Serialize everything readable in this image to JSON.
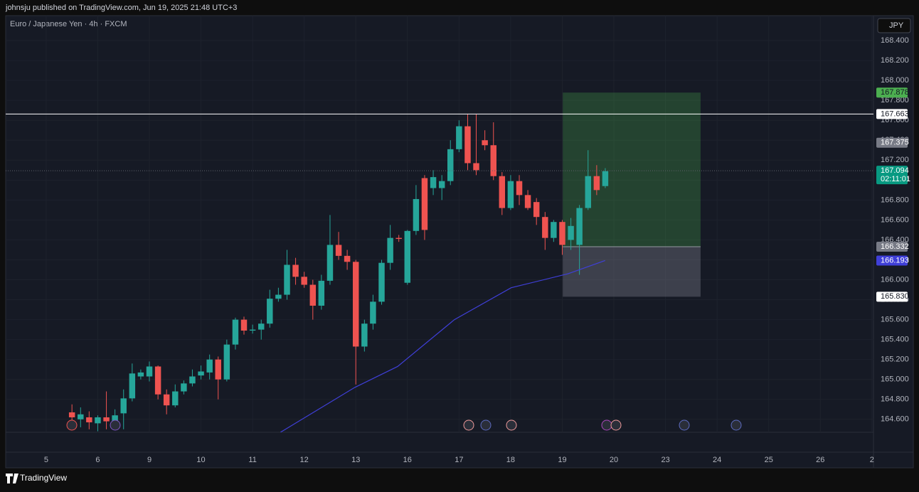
{
  "header": "johnsju published on TradingView.com, Jun 19, 2025 21:48 UTC+3",
  "brand": "TradingView",
  "chart_data": {
    "type": "candlestick",
    "title": "Euro / Japanese Yen · 4h · FXCM",
    "currency": "JPY",
    "up_color": "#26a69a",
    "down_color": "#ef5350",
    "xlim": [
      -0.784,
      16.03
    ],
    "xticks": [
      {
        "value": 0,
        "label": "5"
      },
      {
        "value": 1,
        "label": "6"
      },
      {
        "value": 2,
        "label": "9"
      },
      {
        "value": 3,
        "label": "10"
      },
      {
        "value": 4,
        "label": "11"
      },
      {
        "value": 5,
        "label": "12"
      },
      {
        "value": 6,
        "label": "13"
      },
      {
        "value": 7,
        "label": "16"
      },
      {
        "value": 8,
        "label": "17"
      },
      {
        "value": 9,
        "label": "18"
      },
      {
        "value": 10,
        "label": "19"
      },
      {
        "value": 11,
        "label": "20"
      },
      {
        "value": 12,
        "label": "23"
      },
      {
        "value": 13,
        "label": "24"
      },
      {
        "value": 14,
        "label": "25"
      },
      {
        "value": 15,
        "label": "26"
      },
      {
        "value": 16,
        "label": "2"
      }
    ],
    "ylim": [
      164.47,
      168.65
    ],
    "yticks": [
      {
        "value": 164.6,
        "label": "164.600"
      },
      {
        "value": 164.8,
        "label": "164.800"
      },
      {
        "value": 165.0,
        "label": "165.000"
      },
      {
        "value": 165.2,
        "label": "165.200"
      },
      {
        "value": 165.4,
        "label": "165.400"
      },
      {
        "value": 165.6,
        "label": "165.600"
      },
      {
        "value": 165.8,
        "label": "165.800"
      },
      {
        "value": 166.0,
        "label": "166.000"
      },
      {
        "value": 166.2,
        "label": "166.200"
      },
      {
        "value": 166.4,
        "label": "166.400"
      },
      {
        "value": 166.6,
        "label": "166.600"
      },
      {
        "value": 166.8,
        "label": "166.800"
      },
      {
        "value": 167.0,
        "label": "167.000"
      },
      {
        "value": 167.2,
        "label": "167.200"
      },
      {
        "value": 167.4,
        "label": "167.400"
      },
      {
        "value": 167.6,
        "label": "167.600"
      },
      {
        "value": 167.8,
        "label": "167.800"
      },
      {
        "value": 168.0,
        "label": "168.000"
      },
      {
        "value": 168.2,
        "label": "168.200"
      },
      {
        "value": 168.4,
        "label": "168.400"
      }
    ],
    "candles": {
      "x": [
        0.5,
        0.667,
        0.833,
        1,
        1.167,
        1.333,
        1.5,
        1.667,
        1.833,
        2,
        2.167,
        2.333,
        2.5,
        2.667,
        2.833,
        3,
        3.167,
        3.333,
        3.5,
        3.667,
        3.833,
        4,
        4.167,
        4.333,
        4.5,
        4.667,
        4.833,
        5,
        5.167,
        5.333,
        5.5,
        5.667,
        5.833,
        6,
        6.167,
        6.333,
        6.5,
        6.667,
        6.833,
        7,
        7.167,
        7.333,
        7.5,
        7.667,
        7.833,
        8,
        8.167,
        8.333,
        8.5,
        8.667,
        8.833,
        9,
        9.167,
        9.333,
        9.5,
        9.667,
        9.833,
        10,
        10.167,
        10.333,
        10.5,
        10.667,
        10.833
      ],
      "open": [
        164.67,
        164.6,
        164.62,
        164.56,
        164.62,
        164.58,
        164.66,
        164.81,
        165.03,
        165.03,
        165.13,
        164.85,
        164.74,
        164.88,
        164.96,
        165.04,
        165.07,
        165.2,
        165.0,
        165.35,
        165.6,
        165.49,
        165.5,
        165.56,
        165.81,
        165.85,
        166.15,
        166.03,
        165.95,
        165.74,
        165.99,
        166.35,
        166.24,
        166.18,
        165.33,
        165.56,
        165.78,
        166.17,
        166.42,
        165.97,
        166.49,
        167.02,
        166.92,
        166.92,
        166.99,
        167.31,
        167.54,
        167.17,
        167.4,
        167.35,
        167.04,
        166.72,
        166.99,
        166.85,
        166.78,
        166.63,
        166.42,
        166.58,
        166.4,
        166.35,
        166.72,
        167.04,
        166.94
      ],
      "high": [
        164.75,
        164.72,
        164.68,
        164.64,
        164.88,
        164.7,
        164.9,
        165.16,
        165.1,
        165.18,
        165.14,
        164.9,
        164.95,
        164.99,
        165.1,
        165.14,
        165.25,
        165.23,
        165.4,
        165.62,
        165.63,
        165.55,
        165.6,
        165.9,
        165.92,
        166.3,
        166.22,
        166.08,
        166.0,
        166.05,
        166.65,
        166.48,
        166.3,
        166.2,
        165.6,
        165.85,
        166.2,
        166.55,
        166.45,
        166.5,
        166.95,
        167.05,
        167.1,
        167.05,
        167.4,
        167.6,
        167.66,
        167.66,
        167.5,
        167.58,
        167.08,
        167.05,
        167.05,
        166.9,
        166.82,
        166.68,
        166.6,
        166.6,
        166.62,
        166.75,
        167.3,
        167.15,
        167.12
      ],
      "low": [
        164.55,
        164.52,
        164.5,
        164.48,
        164.5,
        164.5,
        164.5,
        164.78,
        165.0,
        164.98,
        164.8,
        164.65,
        164.72,
        164.85,
        164.93,
        165.0,
        165.0,
        164.8,
        164.98,
        165.3,
        165.45,
        165.46,
        165.4,
        165.52,
        165.78,
        165.8,
        165.95,
        165.92,
        165.6,
        165.7,
        165.95,
        166.2,
        166.1,
        164.95,
        165.28,
        165.5,
        165.75,
        166.1,
        166.38,
        165.95,
        166.45,
        166.4,
        166.85,
        166.8,
        166.95,
        167.28,
        167.1,
        167.05,
        167.3,
        167.0,
        166.65,
        166.7,
        166.75,
        166.7,
        166.55,
        166.3,
        166.38,
        166.25,
        166.3,
        166.05,
        166.7,
        166.85,
        166.92
      ],
      "close": [
        164.62,
        164.65,
        164.57,
        164.62,
        164.58,
        164.64,
        164.81,
        165.06,
        165.07,
        165.13,
        164.85,
        164.74,
        164.88,
        164.96,
        165.03,
        165.08,
        165.2,
        165.0,
        165.35,
        165.6,
        165.49,
        165.5,
        165.56,
        165.81,
        165.85,
        166.15,
        166.03,
        165.95,
        165.74,
        165.99,
        166.35,
        166.24,
        166.18,
        165.33,
        165.56,
        165.78,
        166.17,
        166.42,
        166.41,
        166.49,
        166.81,
        166.5,
        167.03,
        166.99,
        167.31,
        167.54,
        167.17,
        167.1,
        167.35,
        167.04,
        166.72,
        166.99,
        166.85,
        166.72,
        166.63,
        166.42,
        166.58,
        166.35,
        166.54,
        166.72,
        167.04,
        166.9,
        167.09
      ]
    },
    "ma": {
      "color": "#3f3fd8",
      "x": [
        4.54,
        5.98,
        6.81,
        7.91,
        9.01,
        10.11,
        10.83
      ],
      "values": [
        164.47,
        164.92,
        165.13,
        165.6,
        165.92,
        166.06,
        166.193
      ]
    },
    "position": {
      "x": [
        10.01,
        12.68
      ],
      "target": 167.878,
      "entry": 166.332,
      "stop": {
        "value": 165.83,
        "label": "165.830"
      }
    },
    "price_labels": [
      {
        "value": 167.663,
        "bg": "#ffffff",
        "fg": "#131722",
        "line": "solid"
      },
      {
        "value": 167.375,
        "bg": "#787b86",
        "fg": "#ffffff"
      },
      {
        "value": 167.094,
        "bg": "#089981",
        "fg": "#ffffff",
        "line": "dotted",
        "countdown": "02:11:01"
      }
    ]
  }
}
